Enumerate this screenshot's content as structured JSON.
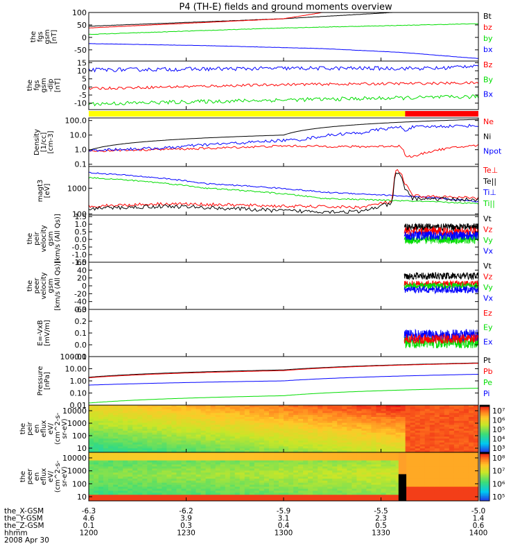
{
  "title": "P4 (TH-E) fields and ground moments overview",
  "colors": {
    "black": "#000000",
    "red": "#ff0000",
    "green": "#00dd00",
    "blue": "#0000ff",
    "yellow": "#ffff00"
  },
  "chart_data": [
    {
      "type": "line",
      "panel": "fgs_gsm",
      "ylabel": [
        "the",
        "fgs",
        "gsm",
        "[nT]"
      ],
      "yticks": [
        "100",
        "50",
        "0",
        "-50"
      ],
      "ylim": [
        -95,
        100
      ],
      "legend": [
        {
          "name": "Bt",
          "color": "black"
        },
        {
          "name": "bz",
          "color": "red"
        },
        {
          "name": "by",
          "color": "green"
        },
        {
          "name": "bx",
          "color": "blue"
        }
      ],
      "series": [
        {
          "name": "Bt",
          "color": "black",
          "x": [
            0,
            0.5,
            0.78
          ],
          "y": [
            45,
            75,
            100
          ],
          "noise": 0.5
        },
        {
          "name": "bz",
          "color": "red",
          "x": [
            0,
            0.5,
            0.6
          ],
          "y": [
            38,
            75,
            100
          ],
          "noise": 0.5
        },
        {
          "name": "by",
          "color": "green",
          "x": [
            0,
            0.5,
            1
          ],
          "y": [
            12,
            38,
            55
          ],
          "noise": 1
        },
        {
          "name": "bx",
          "color": "blue",
          "x": [
            0,
            0.3,
            0.6,
            0.8,
            1
          ],
          "y": [
            -25,
            -33,
            -45,
            -60,
            -85
          ],
          "noise": 0.5
        }
      ]
    },
    {
      "type": "line",
      "panel": "fgs_gsm_dip",
      "ylabel": [
        "the",
        "fgs",
        "gsm",
        "-dip",
        "[nT]"
      ],
      "yticks": [
        "15",
        "10",
        "5",
        "0",
        "-5",
        "-10"
      ],
      "ylim": [
        -14,
        16
      ],
      "legend": [
        {
          "name": "Bz",
          "color": "red"
        },
        {
          "name": "By",
          "color": "green"
        },
        {
          "name": "Bx",
          "color": "blue"
        }
      ],
      "series": [
        {
          "name": "Bx",
          "color": "blue",
          "x": [
            0,
            0.5,
            0.9,
            1
          ],
          "y": [
            10.5,
            11.5,
            11.5,
            13.5
          ],
          "noise": 1.2
        },
        {
          "name": "Bz",
          "color": "red",
          "x": [
            0,
            0.5,
            1
          ],
          "y": [
            -1,
            1.5,
            2.5
          ],
          "noise": 0.8
        },
        {
          "name": "By",
          "color": "green",
          "x": [
            0,
            0.5,
            1
          ],
          "y": [
            -10.5,
            -8,
            -6
          ],
          "noise": 1.2
        }
      ]
    },
    {
      "type": "bar",
      "panel": "status_bar",
      "segments": [
        {
          "from": 0,
          "to": 0.812,
          "color": "yellow"
        },
        {
          "from": 0.812,
          "to": 1,
          "color": "red"
        }
      ]
    },
    {
      "type": "line",
      "panel": "density",
      "log": true,
      "ylabel": [
        "Density",
        "[1/cc]",
        "[cm-3]"
      ],
      "yticks": [
        "100.0",
        "10.0",
        "1.0",
        "0.1"
      ],
      "ylim": [
        0.07,
        150
      ],
      "legend": [
        {
          "name": "Ne",
          "color": "red"
        },
        {
          "name": "Ni",
          "color": "black"
        },
        {
          "name": "Npot",
          "color": "blue"
        }
      ],
      "series": [
        {
          "name": "Ne",
          "color": "red",
          "x": [
            0,
            0.3,
            0.5,
            0.7,
            0.8,
            0.812,
            0.84,
            0.9,
            1
          ],
          "y": [
            0.8,
            1.2,
            1.8,
            1.6,
            1.8,
            0.35,
            0.35,
            1.0,
            2.0
          ],
          "noise": 0.15
        },
        {
          "name": "Npot",
          "color": "blue",
          "x": [
            0,
            0.2,
            0.4,
            0.55,
            0.65,
            0.7,
            0.75,
            0.8,
            0.812,
            0.83,
            0.9,
            1
          ],
          "y": [
            0.9,
            1.3,
            3,
            5,
            12,
            14,
            25,
            35,
            20,
            35,
            40,
            45
          ],
          "noise": 0.2
        },
        {
          "name": "Ni",
          "color": "black",
          "x": [
            0,
            0.5,
            1
          ],
          "y": [
            0.9,
            10,
            120
          ],
          "noise": 0
        }
      ]
    },
    {
      "type": "line",
      "panel": "energy",
      "log": true,
      "ylabel": [
        "magt3",
        "[eV]"
      ],
      "yticks": [
        "1000",
        "100"
      ],
      "ylim": [
        90,
        7000
      ],
      "legend": [
        {
          "name": "Te⊥",
          "color": "red"
        },
        {
          "name": "Te||",
          "color": "black"
        },
        {
          "name": "Ti⊥",
          "color": "blue"
        },
        {
          "name": "Ti||",
          "color": "green"
        }
      ],
      "series": [
        {
          "name": "Ti⊥",
          "color": "blue",
          "x": [
            0,
            0.3,
            0.6,
            1
          ],
          "y": [
            4000,
            1500,
            700,
            300
          ],
          "noise": 0.05
        },
        {
          "name": "Ti||",
          "color": "green",
          "x": [
            0,
            0.3,
            0.6,
            1
          ],
          "y": [
            2600,
            1000,
            400,
            250
          ],
          "noise": 0.05
        },
        {
          "name": "Te⊥",
          "color": "red",
          "x": [
            0,
            0.2,
            0.5,
            0.7,
            0.78,
            0.79,
            0.8,
            0.81,
            0.83,
            1
          ],
          "y": [
            200,
            250,
            200,
            180,
            300,
            5000,
            4000,
            1500,
            500,
            400
          ],
          "noise": 0.12
        },
        {
          "name": "Te||",
          "color": "black",
          "x": [
            0,
            0.2,
            0.5,
            0.7,
            0.78,
            0.79,
            0.8,
            0.81,
            0.83,
            1
          ],
          "y": [
            160,
            200,
            130,
            120,
            250,
            4000,
            3000,
            1000,
            400,
            350
          ],
          "noise": 0.15
        }
      ]
    },
    {
      "type": "line",
      "panel": "peir_velocity",
      "ylabel": [
        "the",
        "peir",
        "velocity",
        "gsm",
        "[km/s (All Qs)]"
      ],
      "yticks": [
        "1.5",
        "1.0",
        "0.5",
        "0.0",
        "-0.5",
        "-1.0",
        "-1.5"
      ],
      "ylim": [
        -1.5,
        1.6
      ],
      "start": 0.81,
      "legend": [
        {
          "name": "Vt",
          "color": "black"
        },
        {
          "name": "Vz",
          "color": "red"
        },
        {
          "name": "Vy",
          "color": "green"
        },
        {
          "name": "Vx",
          "color": "blue"
        }
      ],
      "series": [
        {
          "name": "Vt",
          "color": "black",
          "x": [
            0.81,
            1
          ],
          "y": [
            0.8,
            0.8
          ],
          "noise": 0.25
        },
        {
          "name": "Vz",
          "color": "red",
          "x": [
            0.81,
            1
          ],
          "y": [
            0.5,
            0.5
          ],
          "noise": 0.3
        },
        {
          "name": "Vy",
          "color": "green",
          "x": [
            0.81,
            1
          ],
          "y": [
            0.0,
            0.0
          ],
          "noise": 0.3
        },
        {
          "name": "Vx",
          "color": "blue",
          "x": [
            0.81,
            1
          ],
          "y": [
            0.25,
            0.25
          ],
          "noise": 0.3
        }
      ]
    },
    {
      "type": "line",
      "panel": "peer_velocity",
      "ylabel": [
        "the",
        "peer",
        "velocity",
        "gsm",
        "[km/s (All Qs)]"
      ],
      "yticks": [
        "60",
        "40",
        "20",
        "0",
        "-20",
        "-40",
        "-60"
      ],
      "ylim": [
        -60,
        60
      ],
      "start": 0.81,
      "legend": [
        {
          "name": "Vt",
          "color": "black"
        },
        {
          "name": "Vz",
          "color": "red"
        },
        {
          "name": "Vy",
          "color": "green"
        },
        {
          "name": "Vx",
          "color": "blue"
        }
      ],
      "series": [
        {
          "name": "Vt",
          "color": "black",
          "x": [
            0.81,
            1
          ],
          "y": [
            25,
            25
          ],
          "noise": 9
        },
        {
          "name": "Vz",
          "color": "red",
          "x": [
            0.81,
            1
          ],
          "y": [
            5,
            5
          ],
          "noise": 8
        },
        {
          "name": "Vy",
          "color": "green",
          "x": [
            0.81,
            1
          ],
          "y": [
            0,
            0
          ],
          "noise": 8
        },
        {
          "name": "Vx",
          "color": "blue",
          "x": [
            0.81,
            1
          ],
          "y": [
            -10,
            -10
          ],
          "noise": 9
        }
      ]
    },
    {
      "type": "line",
      "panel": "efield",
      "ylabel": [
        "E=-VxB",
        "[mV/m]"
      ],
      "yticks": [
        "0.3",
        "0.2",
        "0.1",
        "0.0",
        "-0.1"
      ],
      "ylim": [
        -0.1,
        0.3
      ],
      "start": 0.81,
      "legend": [
        {
          "name": "Ez",
          "color": "red"
        },
        {
          "name": "Ey",
          "color": "green"
        },
        {
          "name": "Ex",
          "color": "blue"
        }
      ],
      "series": [
        {
          "name": "Ey",
          "color": "green",
          "x": [
            0.81,
            1
          ],
          "y": [
            0.02,
            0.02
          ],
          "noise": 0.05
        },
        {
          "name": "Ex",
          "color": "blue",
          "x": [
            0.81,
            1
          ],
          "y": [
            0.08,
            0.08
          ],
          "noise": 0.05
        },
        {
          "name": "Ez",
          "color": "red",
          "x": [
            0.81,
            1
          ],
          "y": [
            0.05,
            0.05
          ],
          "noise": 0.04
        }
      ]
    },
    {
      "type": "line",
      "panel": "pressure",
      "log": true,
      "ylabel": [
        "Pressure",
        "[nPa]"
      ],
      "yticks": [
        "100.00",
        "10.00",
        "1.00",
        "0.10",
        "0.01"
      ],
      "ylim": [
        0.01,
        100
      ],
      "legend": [
        {
          "name": "Pt",
          "color": "black"
        },
        {
          "name": "Pb",
          "color": "red"
        },
        {
          "name": "Pe",
          "color": "green"
        },
        {
          "name": "Pi",
          "color": "blue"
        }
      ],
      "series": [
        {
          "name": "Pt",
          "color": "black",
          "x": [
            0,
            0.5,
            1
          ],
          "y": [
            2,
            8,
            30
          ],
          "noise": 0
        },
        {
          "name": "Pb",
          "color": "red",
          "x": [
            0,
            0.5,
            1
          ],
          "y": [
            1.8,
            7,
            28
          ],
          "noise": 0
        },
        {
          "name": "Pi",
          "color": "blue",
          "x": [
            0,
            0.5,
            1
          ],
          "y": [
            0.45,
            1.0,
            3.5
          ],
          "noise": 0
        },
        {
          "name": "Pe",
          "color": "green",
          "x": [
            0,
            0.5,
            1
          ],
          "y": [
            0.015,
            0.06,
            0.25
          ],
          "noise": 0
        }
      ]
    },
    {
      "type": "heatmap",
      "panel": "peir_eflux",
      "ylabel": [
        "the",
        "peir",
        "en",
        "eflux",
        "eV/",
        "(cm^2-s-",
        "sr-eV)"
      ],
      "yticks": [
        "10000",
        "1000",
        "100",
        "10"
      ],
      "colorbar_ticks": [
        "10⁷",
        "10⁶",
        "10⁵",
        "10⁴",
        "10³"
      ]
    },
    {
      "type": "heatmap",
      "panel": "peer_eflux",
      "ylabel": [
        "the",
        "peer",
        "en",
        "eflux",
        "eV/",
        "(cm^2-s-",
        "sr-eV)"
      ],
      "yticks": [
        "10000",
        "1000",
        "100",
        "10"
      ],
      "colorbar_ticks": [
        "10⁸",
        "10⁷",
        "10⁶",
        "10⁵"
      ]
    }
  ],
  "xaxis": {
    "labels": [
      "the_X-GSM",
      "the_Y-GSM",
      "the_Z-GSM",
      "hhmm",
      "2008 Apr 30"
    ],
    "rows": [
      [
        "-6.3",
        "-6.2",
        "-5.9",
        "-5.5",
        "-5.0"
      ],
      [
        "4.6",
        "3.9",
        "3.1",
        "2.3",
        "1.4"
      ],
      [
        "0.1",
        "0.3",
        "0.4",
        "0.5",
        "0.6"
      ],
      [
        "1200",
        "1230",
        "1300",
        "1330",
        "1400"
      ]
    ]
  }
}
